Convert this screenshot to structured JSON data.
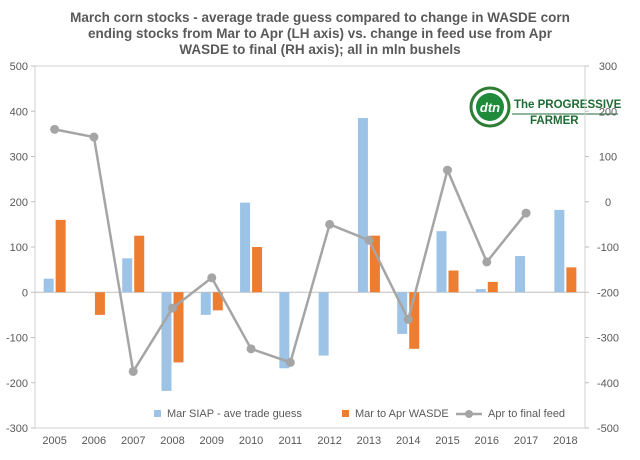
{
  "chart_data": {
    "type": "bar",
    "title_lines": [
      "March corn stocks - average trade guess compared to change in WASDE  corn",
      "ending stocks from Mar to Apr (LH axis)  vs. change in feed use from Apr",
      "WASDE  to final (RH axis); all in mln bushels"
    ],
    "categories": [
      "2005",
      "2006",
      "2007",
      "2008",
      "2009",
      "2010",
      "2011",
      "2012",
      "2013",
      "2014",
      "2015",
      "2016",
      "2017",
      "2018"
    ],
    "series": [
      {
        "name": "Mar SIAP - ave trade guess",
        "kind": "bar",
        "axis": "left",
        "color": "#9DC3E6",
        "values": [
          30,
          0,
          75,
          -218,
          -50,
          198,
          -168,
          -140,
          385,
          -92,
          135,
          7,
          80,
          182
        ]
      },
      {
        "name": "Mar to Apr WASDE",
        "kind": "bar",
        "axis": "left",
        "color": "#ED7D31",
        "values": [
          160,
          -50,
          125,
          -155,
          -40,
          100,
          0,
          0,
          125,
          -125,
          48,
          23,
          0,
          55
        ]
      },
      {
        "name": "Apr to final feed",
        "kind": "line",
        "axis": "right",
        "color": "#A5A5A5",
        "values": [
          160,
          143,
          -375,
          -235,
          -168,
          -325,
          -355,
          -50,
          -85,
          -260,
          70,
          -133,
          -25,
          null
        ]
      }
    ],
    "ylim_left": [
      -300,
      500
    ],
    "yticks_left": [
      -300,
      -200,
      -100,
      0,
      100,
      200,
      300,
      400,
      500
    ],
    "ylim_right": [
      -500,
      300
    ],
    "yticks_right": [
      -500,
      -400,
      -300,
      -200,
      -100,
      0,
      100,
      200,
      300
    ],
    "legend_position": "bottom",
    "gridlines": false
  },
  "logo": {
    "mark": "dtn",
    "text_line1": "The PROGRESSIVE",
    "text_line2": "FARMER"
  }
}
